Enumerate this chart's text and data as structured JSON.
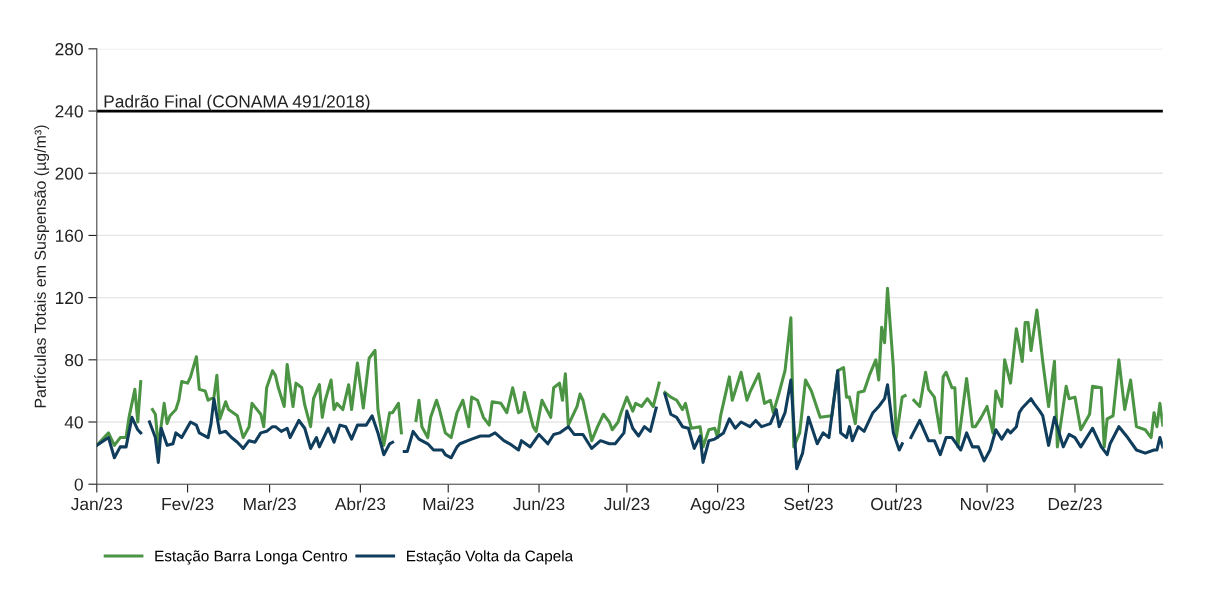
{
  "chart_data": {
    "type": "line",
    "ylabel": "Partículas Totais em Suspensão (µg/m³)",
    "xlim": [
      "2023-01-01",
      "2023-12-31"
    ],
    "xticks": [
      {
        "value": "2023-01-01",
        "label": "Jan/23"
      },
      {
        "value": "2023-02-01",
        "label": "Fev/23"
      },
      {
        "value": "2023-03-01",
        "label": "Mar/23"
      },
      {
        "value": "2023-04-01",
        "label": "Abr/23"
      },
      {
        "value": "2023-05-01",
        "label": "Mai/23"
      },
      {
        "value": "2023-06-01",
        "label": "Jun/23"
      },
      {
        "value": "2023-07-01",
        "label": "Jul/23"
      },
      {
        "value": "2023-08-01",
        "label": "Ago/23"
      },
      {
        "value": "2023-09-01",
        "label": "Set/23"
      },
      {
        "value": "2023-10-01",
        "label": "Out/23"
      },
      {
        "value": "2023-11-01",
        "label": "Nov/23"
      },
      {
        "value": "2023-12-01",
        "label": "Dez/23"
      }
    ],
    "ylim": [
      0,
      280
    ],
    "yticks": [
      0,
      40,
      80,
      120,
      160,
      200,
      240,
      280
    ],
    "grid": "y",
    "legend": "bottom",
    "marker": "none",
    "line_style": "solid",
    "ref_lines": [
      {
        "axis": "y",
        "value": 240,
        "label": "Padrão Final (CONAMA 491/2018)",
        "color": "#000000"
      }
    ],
    "series": [
      {
        "name": "Estação Barra Longa Centro",
        "color": "#4b9443",
        "x": [
          "2023-01-01",
          "2023-01-05",
          "2023-01-07",
          "2023-01-09",
          "2023-01-11",
          "2023-01-12",
          "2023-01-14",
          "2023-01-15",
          "2023-01-16",
          "2023-01-18",
          "2023-01-20",
          "2023-01-21",
          "2023-01-22",
          "2023-01-24",
          "2023-01-25",
          "2023-01-26",
          "2023-01-28",
          "2023-01-29",
          "2023-01-30",
          "2023-02-01",
          "2023-02-02",
          "2023-02-04",
          "2023-02-05",
          "2023-02-07",
          "2023-02-08",
          "2023-02-10",
          "2023-02-11",
          "2023-02-12",
          "2023-02-14",
          "2023-02-15",
          "2023-02-18",
          "2023-02-20",
          "2023-02-22",
          "2023-02-23",
          "2023-02-26",
          "2023-02-27",
          "2023-02-28",
          "2023-03-02",
          "2023-03-03",
          "2023-03-04",
          "2023-03-06",
          "2023-03-07",
          "2023-03-09",
          "2023-03-10",
          "2023-03-12",
          "2023-03-13",
          "2023-03-15",
          "2023-03-16",
          "2023-03-18",
          "2023-03-19",
          "2023-03-20",
          "2023-03-22",
          "2023-03-23",
          "2023-03-24",
          "2023-03-26",
          "2023-03-28",
          "2023-03-29",
          "2023-03-31",
          "2023-04-02",
          "2023-04-04",
          "2023-04-06",
          "2023-04-07",
          "2023-04-09",
          "2023-04-11",
          "2023-04-12",
          "2023-04-14",
          "2023-04-15",
          "2023-04-17",
          "2023-04-20",
          "2023-04-21",
          "2023-04-22",
          "2023-04-24",
          "2023-04-25",
          "2023-04-27",
          "2023-04-28",
          "2023-04-30",
          "2023-05-02",
          "2023-05-04",
          "2023-05-06",
          "2023-05-08",
          "2023-05-09",
          "2023-05-11",
          "2023-05-13",
          "2023-05-15",
          "2023-05-16",
          "2023-05-19",
          "2023-05-21",
          "2023-05-23",
          "2023-05-25",
          "2023-05-26",
          "2023-05-27",
          "2023-05-30",
          "2023-05-31",
          "2023-06-02",
          "2023-06-05",
          "2023-06-06",
          "2023-06-08",
          "2023-06-09",
          "2023-06-10",
          "2023-06-11",
          "2023-06-14",
          "2023-06-15",
          "2023-06-16",
          "2023-06-19",
          "2023-06-21",
          "2023-06-23",
          "2023-06-25",
          "2023-06-26",
          "2023-06-28",
          "2023-06-29",
          "2023-07-01",
          "2023-07-03",
          "2023-07-04",
          "2023-07-06",
          "2023-07-08",
          "2023-07-10",
          "2023-07-12",
          "2023-07-13",
          "2023-07-14",
          "2023-07-16",
          "2023-07-18",
          "2023-07-20",
          "2023-07-21",
          "2023-07-23",
          "2023-07-26",
          "2023-07-27",
          "2023-07-29",
          "2023-07-31",
          "2023-08-01",
          "2023-08-02",
          "2023-08-05",
          "2023-08-06",
          "2023-08-09",
          "2023-08-11",
          "2023-08-12",
          "2023-08-15",
          "2023-08-17",
          "2023-08-19",
          "2023-08-20",
          "2023-08-22",
          "2023-08-24",
          "2023-08-26",
          "2023-08-27",
          "2023-08-29",
          "2023-08-31",
          "2023-09-02",
          "2023-09-05",
          "2023-09-09",
          "2023-09-11",
          "2023-09-13",
          "2023-09-14",
          "2023-09-15",
          "2023-09-17",
          "2023-09-18",
          "2023-09-20",
          "2023-09-22",
          "2023-09-24",
          "2023-09-25",
          "2023-09-26",
          "2023-09-27",
          "2023-09-28",
          "2023-09-30",
          "2023-10-01",
          "2023-10-03",
          "2023-10-04",
          "2023-10-05",
          "2023-10-07",
          "2023-10-09",
          "2023-10-11",
          "2023-10-12",
          "2023-10-14",
          "2023-10-16",
          "2023-10-17",
          "2023-10-18",
          "2023-10-20",
          "2023-10-21",
          "2023-10-22",
          "2023-10-25",
          "2023-10-27",
          "2023-10-28",
          "2023-10-30",
          "2023-11-01",
          "2023-11-03",
          "2023-11-04",
          "2023-11-06",
          "2023-11-07",
          "2023-11-09",
          "2023-11-11",
          "2023-11-13",
          "2023-11-14",
          "2023-11-15",
          "2023-11-16",
          "2023-11-18",
          "2023-11-20",
          "2023-11-22",
          "2023-11-24",
          "2023-11-25",
          "2023-11-28",
          "2023-11-29",
          "2023-12-01",
          "2023-12-03",
          "2023-12-06",
          "2023-12-07",
          "2023-12-10",
          "2023-12-11",
          "2023-12-12",
          "2023-12-14",
          "2023-12-16",
          "2023-12-18",
          "2023-12-20",
          "2023-12-22",
          "2023-12-25",
          "2023-12-27",
          "2023-12-28",
          "2023-12-29",
          "2023-12-30",
          "2023-12-31"
        ],
        "values": [
          25,
          33,
          25,
          30,
          30,
          43,
          61,
          40,
          66,
          null,
          48,
          45,
          24,
          52,
          39,
          44,
          48,
          54,
          66,
          65,
          69,
          82,
          61,
          60,
          54,
          56,
          70,
          42,
          53,
          48,
          44,
          30,
          37,
          52,
          45,
          37,
          62,
          73,
          70,
          62,
          50,
          77,
          50,
          65,
          62,
          51,
          37,
          55,
          64,
          43,
          54,
          67,
          48,
          52,
          48,
          64,
          48,
          78,
          49,
          81,
          86,
          48,
          25,
          46,
          46,
          52,
          33,
          null,
          41,
          54,
          37,
          30,
          43,
          54,
          48,
          33,
          30,
          46,
          54,
          37,
          56,
          54,
          43,
          38,
          53,
          52,
          46,
          62,
          46,
          47,
          59,
          37,
          34,
          54,
          43,
          62,
          65,
          54,
          71,
          38,
          50,
          58,
          54,
          28,
          37,
          45,
          40,
          35,
          40,
          46,
          56,
          47,
          52,
          50,
          55,
          50,
          65,
          null,
          59,
          56,
          54,
          48,
          52,
          36,
          37,
          24,
          35,
          36,
          30,
          44,
          69,
          54,
          72,
          54,
          59,
          71,
          52,
          54,
          46,
          59,
          73,
          107,
          24,
          33,
          67,
          60,
          43,
          44,
          73,
          75,
          56,
          56,
          39,
          59,
          60,
          71,
          80,
          67,
          101,
          91,
          126,
          75,
          30,
          56,
          57,
          null,
          54,
          50,
          72,
          61,
          56,
          33,
          69,
          72,
          62,
          62,
          24,
          68,
          37,
          37,
          43,
          50,
          33,
          60,
          50,
          80,
          65,
          100,
          79,
          104,
          104,
          86,
          112,
          79,
          50,
          79,
          24,
          63,
          55,
          56,
          35,
          45,
          63,
          62,
          24,
          42,
          44,
          80,
          48,
          67,
          37,
          35,
          30,
          46,
          37,
          52,
          38
        ]
      },
      {
        "name": "Estação Volta da Capela",
        "color": "#103d5c",
        "x": [
          "2023-01-01",
          "2023-01-05",
          "2023-01-07",
          "2023-01-09",
          "2023-01-11",
          "2023-01-13",
          "2023-01-15",
          "2023-01-16",
          "2023-01-17",
          "2023-01-19",
          "2023-01-21",
          "2023-01-22",
          "2023-01-23",
          "2023-01-25",
          "2023-01-27",
          "2023-01-28",
          "2023-01-30",
          "2023-02-02",
          "2023-02-04",
          "2023-02-05",
          "2023-02-08",
          "2023-02-09",
          "2023-02-10",
          "2023-02-12",
          "2023-02-14",
          "2023-02-16",
          "2023-02-18",
          "2023-02-20",
          "2023-02-22",
          "2023-02-24",
          "2023-02-26",
          "2023-02-28",
          "2023-03-02",
          "2023-03-03",
          "2023-03-05",
          "2023-03-07",
          "2023-03-08",
          "2023-03-11",
          "2023-03-13",
          "2023-03-15",
          "2023-03-17",
          "2023-03-18",
          "2023-03-21",
          "2023-03-23",
          "2023-03-25",
          "2023-03-27",
          "2023-03-29",
          "2023-03-31",
          "2023-04-03",
          "2023-04-05",
          "2023-04-07",
          "2023-04-09",
          "2023-04-11",
          "2023-04-12",
          "2023-04-14",
          "2023-04-16",
          "2023-04-17",
          "2023-04-19",
          "2023-04-21",
          "2023-04-24",
          "2023-04-26",
          "2023-04-29",
          "2023-04-30",
          "2023-05-02",
          "2023-05-04",
          "2023-05-05",
          "2023-05-09",
          "2023-05-12",
          "2023-05-15",
          "2023-05-17",
          "2023-05-20",
          "2023-05-22",
          "2023-05-25",
          "2023-05-26",
          "2023-05-29",
          "2023-06-01",
          "2023-06-04",
          "2023-06-06",
          "2023-06-08",
          "2023-06-11",
          "2023-06-13",
          "2023-06-16",
          "2023-06-19",
          "2023-06-22",
          "2023-06-25",
          "2023-06-27",
          "2023-06-30",
          "2023-07-01",
          "2023-07-03",
          "2023-07-05",
          "2023-07-07",
          "2023-07-09",
          "2023-07-11",
          "2023-07-12",
          "2023-07-14",
          "2023-07-16",
          "2023-07-18",
          "2023-07-20",
          "2023-07-22",
          "2023-07-24",
          "2023-07-26",
          "2023-07-27",
          "2023-07-29",
          "2023-07-31",
          "2023-08-03",
          "2023-08-05",
          "2023-08-07",
          "2023-08-09",
          "2023-08-12",
          "2023-08-14",
          "2023-08-16",
          "2023-08-19",
          "2023-08-21",
          "2023-08-22",
          "2023-08-24",
          "2023-08-26",
          "2023-08-28",
          "2023-08-30",
          "2023-09-01",
          "2023-09-04",
          "2023-09-06",
          "2023-09-08",
          "2023-09-11",
          "2023-09-12",
          "2023-09-14",
          "2023-09-15",
          "2023-09-16",
          "2023-09-18",
          "2023-09-20",
          "2023-09-23",
          "2023-09-25",
          "2023-09-27",
          "2023-09-28",
          "2023-09-30",
          "2023-10-02",
          "2023-10-03",
          "2023-10-05",
          "2023-10-06",
          "2023-10-09",
          "2023-10-12",
          "2023-10-14",
          "2023-10-16",
          "2023-10-18",
          "2023-10-20",
          "2023-10-23",
          "2023-10-25",
          "2023-10-27",
          "2023-10-29",
          "2023-10-31",
          "2023-11-02",
          "2023-11-04",
          "2023-11-06",
          "2023-11-08",
          "2023-11-09",
          "2023-11-11",
          "2023-11-12",
          "2023-11-13",
          "2023-11-16",
          "2023-11-17",
          "2023-11-19",
          "2023-11-20",
          "2023-11-22",
          "2023-11-24",
          "2023-11-25",
          "2023-11-27",
          "2023-11-29",
          "2023-12-01",
          "2023-12-03",
          "2023-12-07",
          "2023-12-10",
          "2023-12-12",
          "2023-12-13",
          "2023-12-16",
          "2023-12-19",
          "2023-12-22",
          "2023-12-25",
          "2023-12-28",
          "2023-12-29",
          "2023-12-30",
          "2023-12-31"
        ],
        "values": [
          25,
          30,
          17,
          24,
          24,
          43,
          35,
          33,
          null,
          40,
          30,
          14,
          36,
          25,
          26,
          33,
          30,
          40,
          38,
          33,
          30,
          39,
          55,
          33,
          34,
          30,
          27,
          23,
          28,
          27,
          33,
          34,
          37,
          37,
          34,
          36,
          30,
          41,
          36,
          23,
          30,
          24,
          36,
          27,
          38,
          37,
          29,
          38,
          38,
          44,
          33,
          19,
          26,
          27,
          null,
          21,
          21,
          34,
          29,
          26,
          22,
          22,
          19,
          17,
          24,
          26,
          29,
          31,
          31,
          33,
          28,
          26,
          22,
          28,
          24,
          32,
          26,
          32,
          33,
          37,
          32,
          32,
          23,
          28,
          26,
          26,
          33,
          47,
          36,
          31,
          37,
          34,
          49,
          null,
          58,
          45,
          43,
          37,
          36,
          23,
          31,
          14,
          28,
          29,
          33,
          42,
          36,
          40,
          37,
          41,
          37,
          39,
          48,
          37,
          46,
          67,
          10,
          20,
          43,
          26,
          33,
          30,
          73,
          33,
          30,
          37,
          28,
          37,
          34,
          46,
          50,
          55,
          64,
          33,
          22,
          26,
          null,
          30,
          41,
          28,
          28,
          19,
          30,
          30,
          22,
          33,
          24,
          24,
          15,
          22,
          35,
          29,
          35,
          33,
          37,
          46,
          49,
          55,
          52,
          47,
          44,
          25,
          43,
          37,
          24,
          32,
          30,
          24,
          36,
          24,
          19,
          26,
          37,
          30,
          22,
          20,
          22,
          22,
          30,
          24
        ]
      }
    ]
  }
}
